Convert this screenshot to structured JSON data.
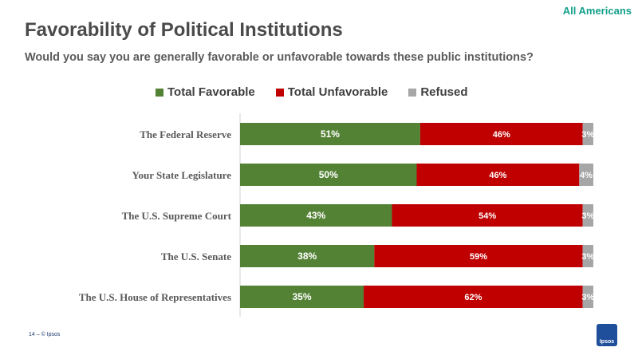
{
  "header": {
    "audience_label": "All Americans",
    "title": "Favorability of Political Institutions",
    "subtitle": "Would you say you are generally favorable or unfavorable towards these public institutions?"
  },
  "legend": [
    {
      "label": "Total Favorable",
      "color": "#548235"
    },
    {
      "label": "Total Unfavorable",
      "color": "#c00000"
    },
    {
      "label": "Refused",
      "color": "#a6a6a6"
    }
  ],
  "chart_data": {
    "type": "bar",
    "orientation": "horizontal",
    "stacked": true,
    "categories": [
      "The Federal Reserve",
      "Your State Legislature",
      "The U.S. Supreme Court",
      "The U.S. Senate",
      "The U.S. House of Representatives"
    ],
    "series": [
      {
        "name": "Total Favorable",
        "color": "#548235",
        "values": [
          51,
          50,
          43,
          38,
          35
        ]
      },
      {
        "name": "Total Unfavorable",
        "color": "#c00000",
        "values": [
          46,
          46,
          54,
          59,
          62
        ]
      },
      {
        "name": "Refused",
        "color": "#a6a6a6",
        "values": [
          3,
          4,
          3,
          3,
          3
        ]
      }
    ],
    "value_suffix": "%",
    "xlim": [
      0,
      100
    ],
    "legend_position": "top"
  },
  "footer": {
    "page_note": "14 ‒  © Ipsos",
    "logo_text": "Ipsos"
  }
}
